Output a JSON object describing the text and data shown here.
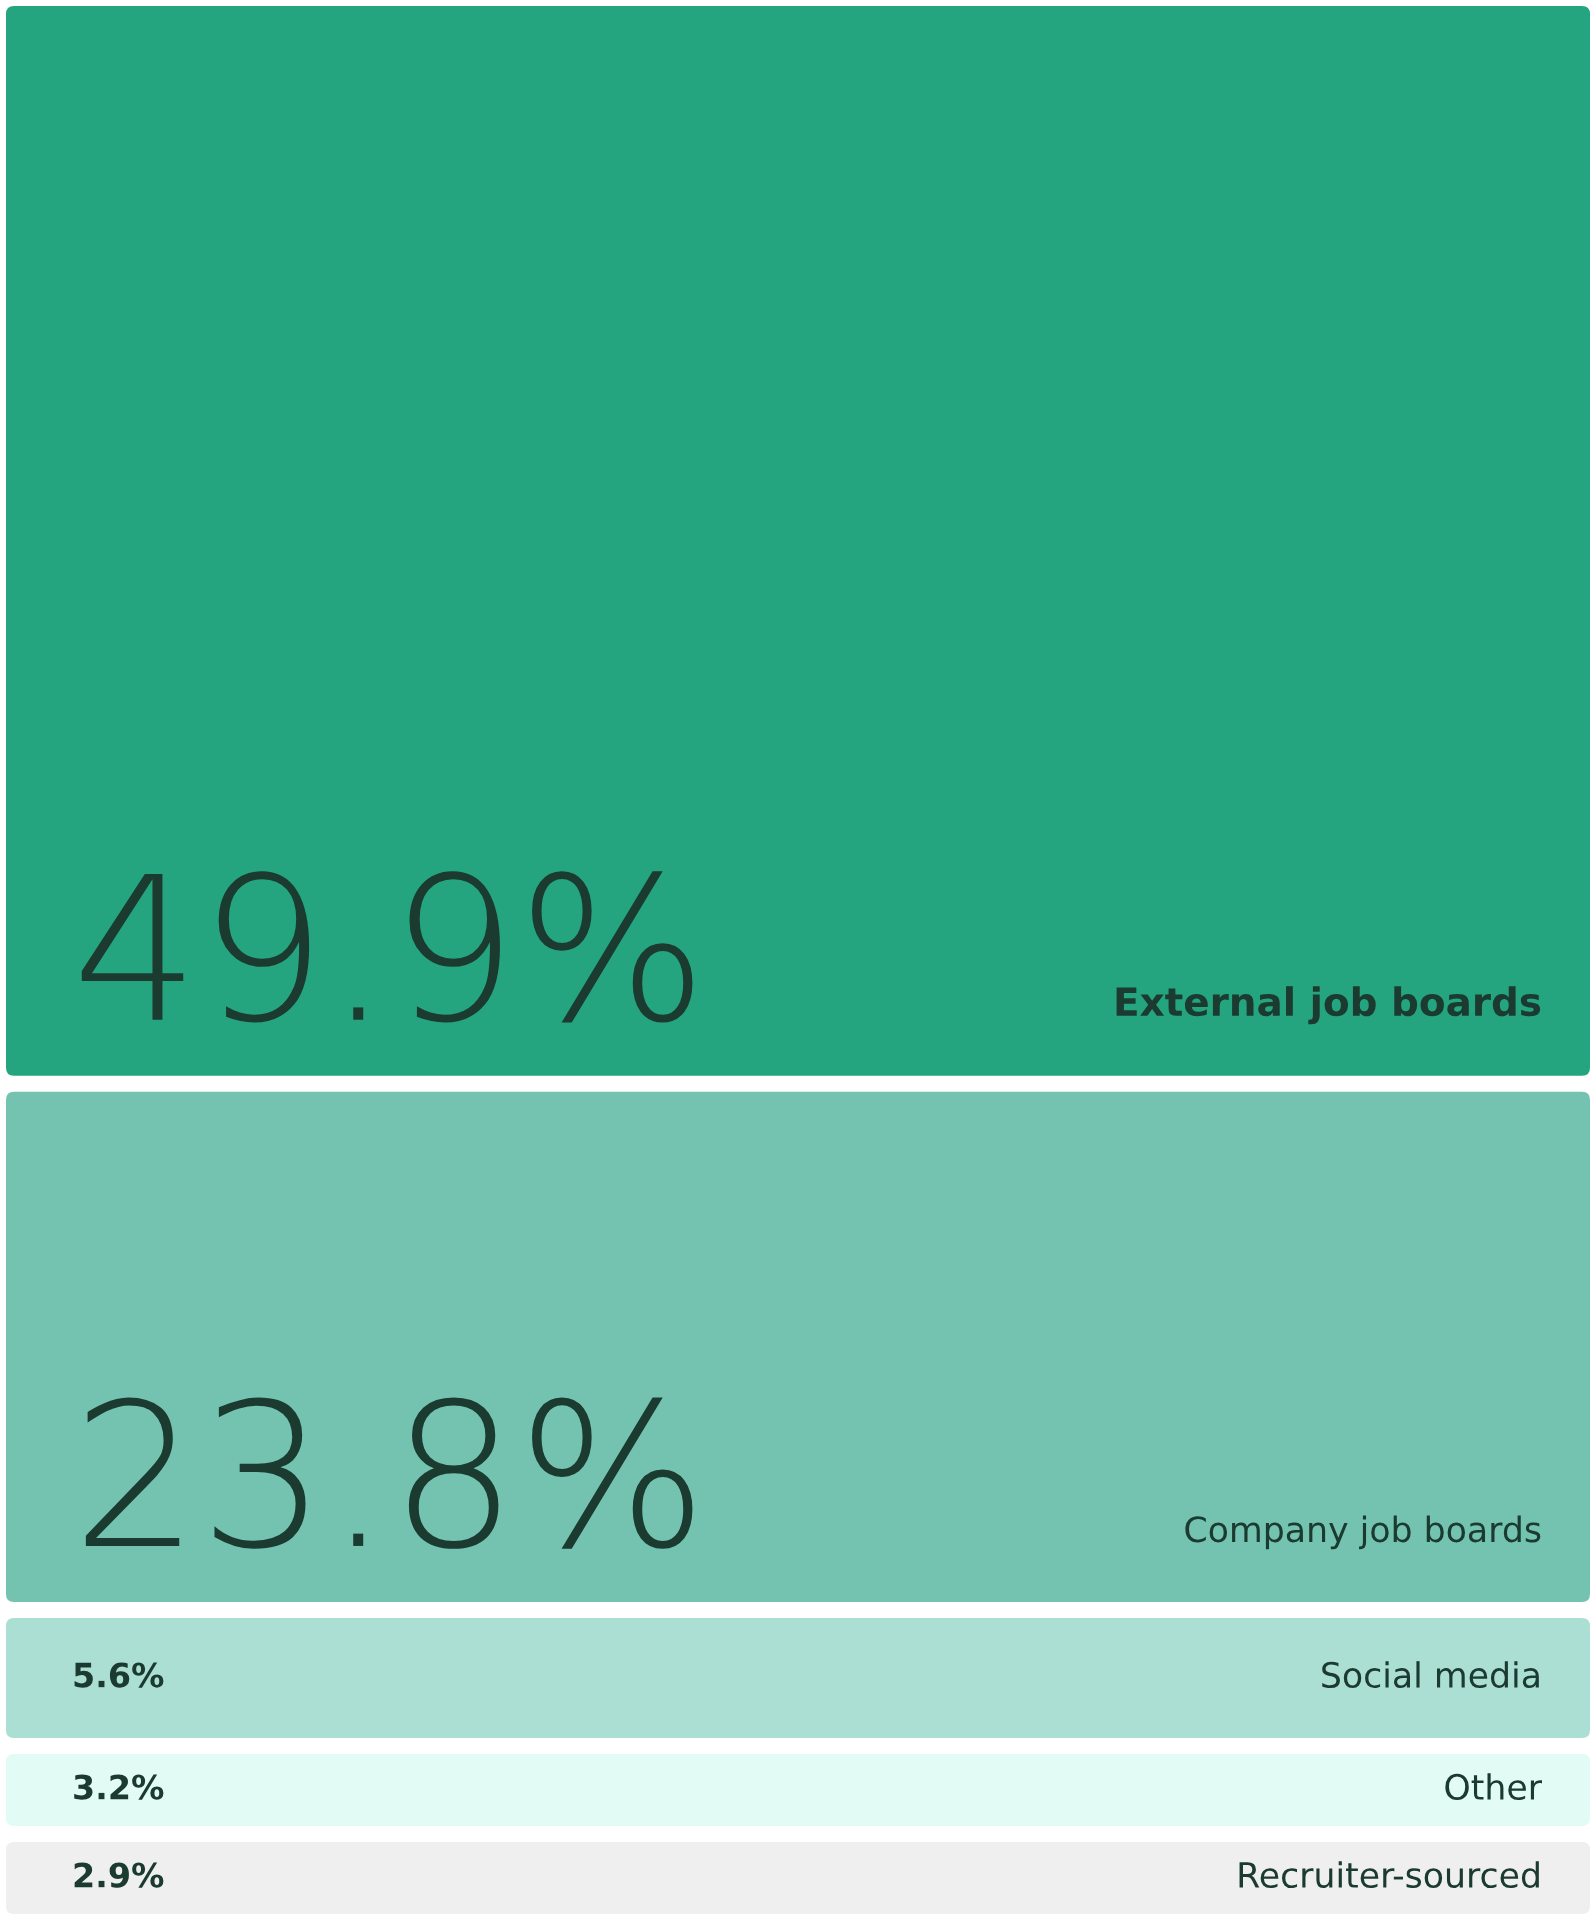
{
  "chart_data": {
    "type": "other",
    "categories": [
      "External job boards",
      "Company job boards",
      "Social media",
      "Other",
      "Recruiter-sourced"
    ],
    "values": [
      49.9,
      23.8,
      5.6,
      3.2,
      2.9
    ],
    "value_labels": [
      "49.9%",
      "23.8%",
      "5.6%",
      "3.2%",
      "2.9%"
    ],
    "colors": [
      "#25a57f",
      "#73c3b0",
      "#acdfd4",
      "#e2fbf5",
      "#efefef"
    ]
  }
}
